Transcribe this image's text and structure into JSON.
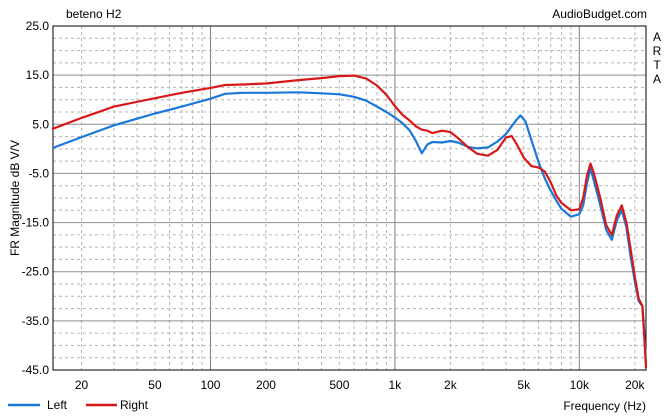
{
  "chart_data": {
    "type": "line",
    "title": "beteno H2",
    "source": "AudioBudget.com",
    "side_label": "ARTA",
    "xlabel": "Frequency (Hz)",
    "ylabel": "FR Magnitude dB V/V",
    "x_scale": "log",
    "xlim": [
      14,
      23000
    ],
    "ylim": [
      -45,
      25
    ],
    "x_ticks": [
      {
        "value": 20,
        "label": "20"
      },
      {
        "value": 50,
        "label": "50"
      },
      {
        "value": 100,
        "label": "100"
      },
      {
        "value": 200,
        "label": "200"
      },
      {
        "value": 500,
        "label": "500"
      },
      {
        "value": 1000,
        "label": "1k"
      },
      {
        "value": 2000,
        "label": "2k"
      },
      {
        "value": 5000,
        "label": "5k"
      },
      {
        "value": 10000,
        "label": "10k"
      },
      {
        "value": 20000,
        "label": "20k"
      }
    ],
    "y_ticks": [
      {
        "value": 25,
        "label": "25.0"
      },
      {
        "value": 15,
        "label": "15.0"
      },
      {
        "value": 5,
        "label": "5.0"
      },
      {
        "value": -5,
        "label": "-5.0"
      },
      {
        "value": -15,
        "label": "-15.0"
      },
      {
        "value": -25,
        "label": "-25.0"
      },
      {
        "value": -35,
        "label": "-35.0"
      },
      {
        "value": -45,
        "label": "-45.0"
      }
    ],
    "grid": true,
    "legend_position": "bottom-left",
    "series": [
      {
        "name": "Left",
        "color": "#1a78d8",
        "points": [
          [
            14,
            0.2
          ],
          [
            20,
            2.4
          ],
          [
            30,
            4.8
          ],
          [
            50,
            7.2
          ],
          [
            70,
            8.6
          ],
          [
            100,
            10.2
          ],
          [
            120,
            11.2
          ],
          [
            150,
            11.4
          ],
          [
            200,
            11.4
          ],
          [
            300,
            11.5
          ],
          [
            400,
            11.3
          ],
          [
            500,
            11.1
          ],
          [
            600,
            10.6
          ],
          [
            700,
            9.8
          ],
          [
            800,
            8.6
          ],
          [
            900,
            7.5
          ],
          [
            1000,
            6.4
          ],
          [
            1100,
            5.2
          ],
          [
            1200,
            3.8
          ],
          [
            1300,
            1.6
          ],
          [
            1400,
            -0.9
          ],
          [
            1500,
            0.9
          ],
          [
            1600,
            1.4
          ],
          [
            1800,
            1.3
          ],
          [
            2000,
            1.6
          ],
          [
            2200,
            1.3
          ],
          [
            2500,
            0.4
          ],
          [
            2800,
            0.1
          ],
          [
            3200,
            0.3
          ],
          [
            3600,
            1.5
          ],
          [
            4000,
            3.0
          ],
          [
            4500,
            5.6
          ],
          [
            4800,
            6.8
          ],
          [
            5100,
            5.6
          ],
          [
            5500,
            1.8
          ],
          [
            6000,
            -2.6
          ],
          [
            6500,
            -6.0
          ],
          [
            7000,
            -8.5
          ],
          [
            7500,
            -10.5
          ],
          [
            8000,
            -12.2
          ],
          [
            9000,
            -13.8
          ],
          [
            10000,
            -13.3
          ],
          [
            10500,
            -11.5
          ],
          [
            11000,
            -7.0
          ],
          [
            11500,
            -4.0
          ],
          [
            12000,
            -6.5
          ],
          [
            13000,
            -11.5
          ],
          [
            14000,
            -16.5
          ],
          [
            15000,
            -18.5
          ],
          [
            16000,
            -14.5
          ],
          [
            17000,
            -12.5
          ],
          [
            18000,
            -16.0
          ],
          [
            19000,
            -22.0
          ],
          [
            20000,
            -27.0
          ],
          [
            21000,
            -31.0
          ],
          [
            22000,
            -32.0
          ],
          [
            22500,
            -37.0
          ],
          [
            23000,
            -44.0
          ]
        ]
      },
      {
        "name": "Right",
        "color": "#d81818",
        "points": [
          [
            14,
            4.1
          ],
          [
            20,
            6.3
          ],
          [
            30,
            8.6
          ],
          [
            50,
            10.3
          ],
          [
            70,
            11.4
          ],
          [
            100,
            12.4
          ],
          [
            120,
            13.0
          ],
          [
            150,
            13.1
          ],
          [
            200,
            13.3
          ],
          [
            300,
            14.0
          ],
          [
            400,
            14.4
          ],
          [
            500,
            14.8
          ],
          [
            600,
            14.9
          ],
          [
            700,
            14.3
          ],
          [
            800,
            12.9
          ],
          [
            900,
            11.0
          ],
          [
            1000,
            8.7
          ],
          [
            1100,
            6.9
          ],
          [
            1200,
            5.8
          ],
          [
            1300,
            4.6
          ],
          [
            1400,
            3.9
          ],
          [
            1500,
            3.7
          ],
          [
            1600,
            3.2
          ],
          [
            1800,
            3.7
          ],
          [
            2000,
            3.4
          ],
          [
            2200,
            2.2
          ],
          [
            2500,
            0.3
          ],
          [
            2800,
            -1.0
          ],
          [
            3200,
            -1.4
          ],
          [
            3600,
            -0.2
          ],
          [
            4000,
            2.3
          ],
          [
            4300,
            2.6
          ],
          [
            4600,
            0.8
          ],
          [
            5000,
            -1.8
          ],
          [
            5500,
            -3.5
          ],
          [
            6000,
            -3.8
          ],
          [
            6500,
            -4.6
          ],
          [
            7000,
            -6.8
          ],
          [
            7500,
            -9.5
          ],
          [
            8000,
            -11.0
          ],
          [
            9000,
            -12.5
          ],
          [
            10000,
            -12.3
          ],
          [
            10500,
            -10.0
          ],
          [
            11000,
            -5.5
          ],
          [
            11500,
            -3.0
          ],
          [
            12000,
            -5.0
          ],
          [
            13000,
            -10.0
          ],
          [
            14000,
            -15.5
          ],
          [
            15000,
            -17.5
          ],
          [
            16000,
            -13.5
          ],
          [
            17000,
            -11.5
          ],
          [
            18000,
            -15.0
          ],
          [
            19000,
            -20.5
          ],
          [
            20000,
            -26.0
          ],
          [
            21000,
            -30.5
          ],
          [
            22000,
            -32.0
          ],
          [
            22500,
            -38.0
          ],
          [
            23000,
            -44.5
          ]
        ]
      }
    ]
  }
}
